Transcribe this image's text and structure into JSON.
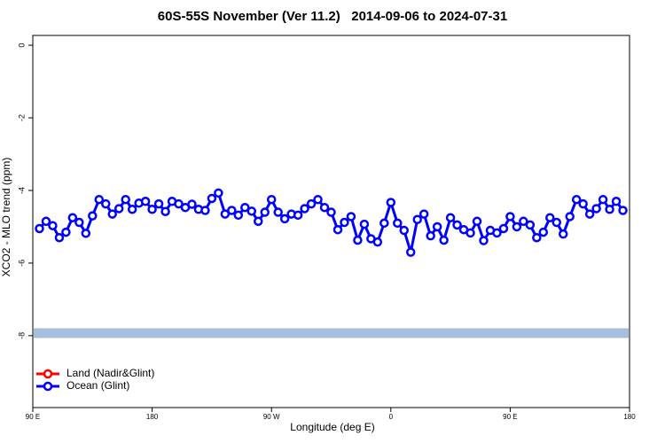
{
  "chart_data": {
    "type": "line",
    "title": "60S-55S November (Ver 11.2)   2014-09-06 to 2024-07-31",
    "x_label": "Longitude (deg E)",
    "y_label": "XCO2 - MLO trend (ppm)",
    "x": [
      95,
      100,
      105,
      110,
      115,
      120,
      125,
      130,
      135,
      140,
      145,
      150,
      155,
      160,
      165,
      170,
      175,
      180,
      185,
      190,
      195,
      200,
      205,
      210,
      215,
      220,
      225,
      230,
      235,
      240,
      245,
      250,
      255,
      260,
      265,
      270,
      275,
      280,
      285,
      290,
      295,
      300,
      305,
      310,
      315,
      320,
      325,
      330,
      335,
      340,
      345,
      350,
      355,
      360,
      365,
      370,
      375,
      380,
      385,
      390,
      395,
      400,
      405,
      410,
      415,
      420,
      425,
      430,
      435,
      440,
      445,
      450,
      455,
      460,
      465,
      470,
      475,
      480,
      485,
      490,
      495,
      500,
      505,
      510,
      515,
      520,
      525,
      530,
      535
    ],
    "series": [
      {
        "name": "Land (Nadir&Glint)",
        "color": "#ff0000",
        "values": [
          null,
          null,
          null,
          null,
          null,
          null,
          null,
          null,
          null,
          null,
          null,
          null,
          null,
          null,
          null,
          null,
          null,
          null,
          null,
          null,
          null,
          null,
          null,
          null,
          null,
          null,
          null,
          null,
          null,
          null,
          null,
          null,
          null,
          null,
          null,
          null,
          null,
          null,
          null,
          null,
          null,
          null,
          null,
          null,
          null,
          null,
          null,
          null,
          null,
          null,
          null,
          null,
          null,
          null,
          null,
          null,
          null,
          null,
          null,
          null,
          null,
          null,
          null,
          null,
          null,
          null,
          null,
          null,
          null,
          null,
          null,
          null,
          null,
          null,
          null,
          null,
          null,
          null,
          null,
          null,
          null,
          null,
          null,
          null,
          null,
          null,
          null,
          null,
          null
        ]
      },
      {
        "name": "Ocean (Glint)",
        "color": "#0000ff",
        "values": [
          -5.05,
          -4.85,
          -4.97,
          -5.3,
          -5.15,
          -4.75,
          -4.88,
          -5.18,
          -4.7,
          -4.25,
          -4.37,
          -4.65,
          -4.5,
          -4.25,
          -4.52,
          -4.35,
          -4.3,
          -4.52,
          -4.37,
          -4.58,
          -4.3,
          -4.37,
          -4.47,
          -4.38,
          -4.52,
          -4.55,
          -4.22,
          -4.07,
          -4.65,
          -4.55,
          -4.68,
          -4.47,
          -4.57,
          -4.85,
          -4.6,
          -4.25,
          -4.6,
          -4.78,
          -4.65,
          -4.68,
          -4.5,
          -4.37,
          -4.25,
          -4.47,
          -4.6,
          -5.08,
          -4.88,
          -4.72,
          -5.37,
          -4.93,
          -5.33,
          -5.42,
          -4.9,
          -4.33,
          -4.9,
          -5.1,
          -5.7,
          -4.8,
          -4.65,
          -5.25,
          -5.0,
          -5.37,
          -4.75,
          -4.95,
          -5.08,
          -5.17,
          -4.85,
          -5.38,
          -5.1,
          -5.17,
          -5.05,
          -4.72,
          -5.0,
          -4.85,
          -4.95,
          -5.3,
          -5.15,
          -4.75,
          -4.88,
          -5.2,
          -4.72,
          -4.25,
          -4.37,
          -4.65,
          -4.5,
          -4.25,
          -4.52,
          -4.3,
          -4.55
        ]
      }
    ],
    "reference_line": {
      "value": -7.93,
      "color": "#a6bddb"
    },
    "xlim": [
      90,
      540
    ],
    "xticks": [
      {
        "value": 90,
        "label": "90 E"
      },
      180,
      {
        "value": 270,
        "label": "90 W"
      },
      {
        "value": 360,
        "label": "0"
      },
      {
        "value": 450,
        "label": "90 E"
      },
      {
        "value": 540,
        "label": "180"
      }
    ],
    "ylim": [
      -9.98,
      0.27
    ],
    "yticks": [
      0,
      -2,
      -4,
      -6,
      -8
    ],
    "legend": "bottom-left"
  }
}
